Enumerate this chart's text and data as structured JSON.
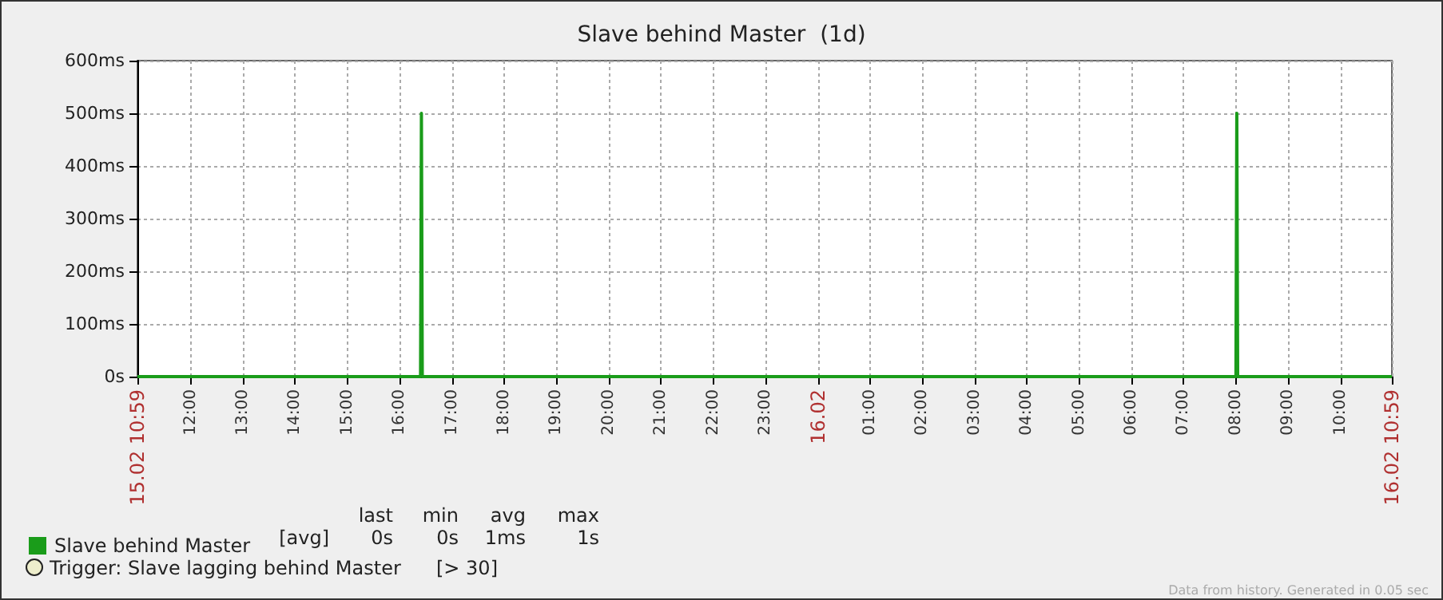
{
  "chart_data": {
    "type": "line",
    "title": "Slave behind Master  (1d)",
    "x": [
      "--02-15T10:59",
      "--02-15T16:24",
      "--02-15T16:25",
      "--02-15T16:26",
      "--02-16T08:00",
      "--02-16T08:01",
      "--02-16T08:02",
      "--02-16T10:59"
    ],
    "series": [
      {
        "name": "Slave behind Master",
        "color": "#1a9c1a",
        "values": [
          0,
          0,
          500,
          0,
          0,
          500,
          0,
          0
        ]
      }
    ],
    "xlim": [
      "--02-15T10:59",
      "--02-16T10:59"
    ],
    "xticks": [
      {
        "value": "--02-15T10:59",
        "label": "15.02 10:59"
      },
      {
        "value": "--02-15T12:00",
        "label": "12:00"
      },
      {
        "value": "--02-15T13:00",
        "label": "13:00"
      },
      {
        "value": "--02-15T14:00",
        "label": "14:00"
      },
      {
        "value": "--02-15T15:00",
        "label": "15:00"
      },
      {
        "value": "--02-15T16:00",
        "label": "16:00"
      },
      {
        "value": "--02-15T17:00",
        "label": "17:00"
      },
      {
        "value": "--02-15T18:00",
        "label": "18:00"
      },
      {
        "value": "--02-15T19:00",
        "label": "19:00"
      },
      {
        "value": "--02-15T20:00",
        "label": "20:00"
      },
      {
        "value": "--02-15T21:00",
        "label": "21:00"
      },
      {
        "value": "--02-15T22:00",
        "label": "22:00"
      },
      {
        "value": "--02-15T23:00",
        "label": "23:00"
      },
      {
        "value": "--02-16T00:00",
        "label": "16.02"
      },
      {
        "value": "--02-16T01:00",
        "label": "01:00"
      },
      {
        "value": "--02-16T02:00",
        "label": "02:00"
      },
      {
        "value": "--02-16T03:00",
        "label": "03:00"
      },
      {
        "value": "--02-16T04:00",
        "label": "04:00"
      },
      {
        "value": "--02-16T05:00",
        "label": "05:00"
      },
      {
        "value": "--02-16T06:00",
        "label": "06:00"
      },
      {
        "value": "--02-16T07:00",
        "label": "07:00"
      },
      {
        "value": "--02-16T08:00",
        "label": "08:00"
      },
      {
        "value": "--02-16T09:00",
        "label": "09:00"
      },
      {
        "value": "--02-16T10:00",
        "label": "10:00"
      },
      {
        "value": "--02-16T10:59",
        "label": "16.02 10:59"
      }
    ],
    "ylim": [
      0,
      600
    ],
    "yticks": [
      {
        "value": 0,
        "label": "0s"
      },
      {
        "value": 100,
        "label": "100ms"
      },
      {
        "value": 200,
        "label": "200ms"
      },
      {
        "value": 300,
        "label": "300ms"
      },
      {
        "value": 400,
        "label": "400ms"
      },
      {
        "value": 500,
        "label": "500ms"
      },
      {
        "value": 600,
        "label": "600ms"
      }
    ],
    "grid": true,
    "legend": "bottom left",
    "marker": "none",
    "line_style": "solid",
    "annotations": [
      "last",
      "min",
      "avg",
      "max",
      "[avg]",
      "0s",
      "0s",
      "1ms",
      "1s",
      "Trigger: Slave lagging behind Master",
      "[> 30]",
      "Data from history. Generated in 0.05 sec"
    ]
  }
}
